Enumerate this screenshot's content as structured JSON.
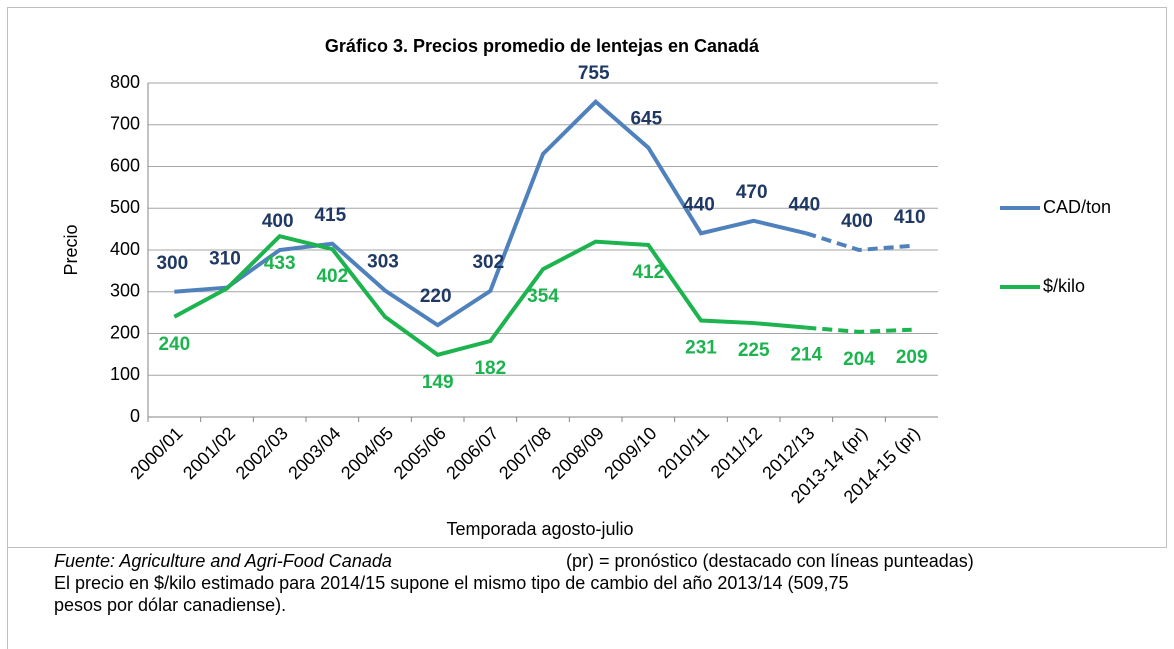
{
  "chart_data": {
    "type": "line",
    "title": "Gráfico 3. Precios promedio de lentejas en Canadá",
    "y_label": "Precio",
    "x_label": "Temporada agosto-julio",
    "categories": [
      "2000/01",
      "2001/02",
      "2002/03",
      "2003/04",
      "2004/05",
      "2005/06",
      "2006/07",
      "2007/08",
      "2008/09",
      "2009/10",
      "2010/11",
      "2011/12",
      "2012/13",
      "2013-14 (pr)",
      "2014-15 (pr)"
    ],
    "series": [
      {
        "name": "CAD/ton",
        "color": "#4f81bd",
        "label_color": "#1f3864",
        "dashed_from": 12,
        "values": [
          300,
          310,
          400,
          415,
          303,
          220,
          302,
          630,
          755,
          645,
          440,
          470,
          440,
          400,
          410
        ],
        "value_labels": [
          "300",
          "310",
          "400",
          "415",
          "303",
          "220",
          "302",
          null,
          "755",
          "645",
          "440",
          "470",
          "440",
          "400",
          "410"
        ]
      },
      {
        "name": "$/kilo",
        "color": "#1db34f",
        "label_color": "#1db34f",
        "dashed_from": 12,
        "values": [
          240,
          308,
          433,
          402,
          240,
          149,
          182,
          354,
          420,
          412,
          231,
          225,
          214,
          204,
          209
        ],
        "value_labels": [
          "240",
          null,
          "433",
          "402",
          null,
          "149",
          "182",
          "354",
          null,
          "412",
          "231",
          "225",
          "214",
          "204",
          "209"
        ]
      }
    ],
    "ylim": [
      0,
      800
    ],
    "yticks": [
      0,
      100,
      200,
      300,
      400,
      500,
      600,
      700,
      800
    ],
    "grid": true,
    "legend": "right",
    "notes": {
      "source": "Fuente: Agriculture and Agri-Food Canada",
      "forecast": "(pr) = pronóstico (destacado con líneas punteadas)",
      "line1": "El precio en $/kilo estimado para 2014/15 supone el mismo tipo de cambio del año 2013/14 (509,75",
      "line2": "pesos por dólar canadiense)."
    }
  }
}
